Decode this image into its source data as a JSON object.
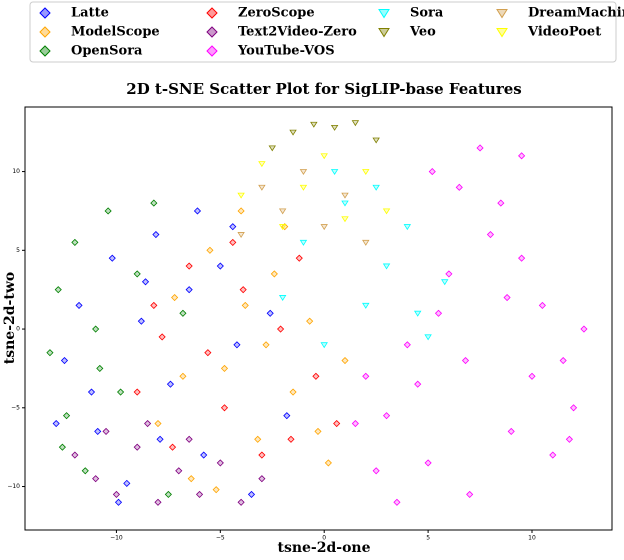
{
  "chart_data": {
    "type": "scatter",
    "title": "2D t-SNE Scatter Plot for SigLIP-base Features",
    "x_label": "tsne-2d-one",
    "y_label": "tsne-2d-two",
    "xlim": [
      -14.4,
      13.85
    ],
    "ylim": [
      -12.76,
      14.1
    ],
    "xticks": [
      {
        "value": -10,
        "label": "−10"
      },
      {
        "value": -5,
        "label": "−5"
      },
      0,
      5,
      10
    ],
    "yticks": [
      {
        "value": -10,
        "label": "−10"
      },
      {
        "value": -5,
        "label": "−5"
      },
      0,
      5,
      10
    ],
    "grid": false,
    "legend": "top",
    "series": [
      {
        "name": "Latte",
        "color": "#0000ff",
        "marker": "diamond",
        "x": [
          -12.5,
          -11.8,
          -10.9,
          -10.2,
          -9.5,
          -8.8,
          -8.1,
          -7.4,
          -6.5,
          -5.8,
          -5.0,
          -4.2,
          -3.5,
          -2.6,
          -1.8,
          -11.2,
          -9.9,
          -7.9,
          -6.1,
          -4.4,
          -12.9,
          -8.6
        ],
        "y": [
          -2.0,
          1.5,
          -6.5,
          4.5,
          -9.8,
          0.5,
          6.0,
          -3.5,
          2.5,
          -8.0,
          4.0,
          -1.0,
          -10.5,
          1.0,
          -5.5,
          -4.0,
          -11.0,
          -7.0,
          7.5,
          6.5,
          -6.0,
          3.0
        ]
      },
      {
        "name": "ModelScope",
        "color": "#ffa500",
        "marker": "diamond",
        "x": [
          -8.0,
          -7.2,
          -6.4,
          -5.5,
          -4.8,
          -4.0,
          -3.2,
          -2.4,
          -1.5,
          -0.7,
          0.2,
          1.0,
          -6.8,
          -3.8,
          -1.9,
          -0.3,
          -5.2,
          -2.8
        ],
        "y": [
          -6.0,
          2.0,
          -9.5,
          5.0,
          -2.5,
          7.5,
          -7.0,
          3.5,
          -4.0,
          0.5,
          -8.5,
          -2.0,
          -3.0,
          1.5,
          6.5,
          -6.5,
          -10.2,
          -1.0
        ]
      },
      {
        "name": "OpenSora",
        "color": "#008000",
        "marker": "diamond",
        "x": [
          -13.2,
          -12.8,
          -12.4,
          -12.0,
          -11.5,
          -11.0,
          -10.4,
          -9.8,
          -9.0,
          -8.2,
          -7.5,
          -6.8,
          -12.6,
          -10.8
        ],
        "y": [
          -1.5,
          2.5,
          -5.5,
          5.5,
          -9.0,
          0.0,
          7.5,
          -4.0,
          3.5,
          8.0,
          -10.5,
          1.0,
          -7.5,
          -2.5
        ]
      },
      {
        "name": "ZeroScope",
        "color": "#ff0000",
        "marker": "diamond",
        "x": [
          -9.0,
          -8.2,
          -7.3,
          -6.5,
          -5.6,
          -4.8,
          -3.9,
          -3.0,
          -2.1,
          -1.2,
          -0.4,
          0.6,
          -7.8,
          -4.4,
          -1.6
        ],
        "y": [
          -4.0,
          1.5,
          -7.5,
          4.0,
          -1.5,
          -5.0,
          2.5,
          -8.0,
          0.0,
          4.5,
          -3.0,
          -6.0,
          -0.5,
          5.5,
          -7.0
        ]
      },
      {
        "name": "Text2Video-Zero",
        "color": "#800080",
        "marker": "diamond",
        "x": [
          -12.0,
          -11.0,
          -10.0,
          -9.0,
          -8.0,
          -7.0,
          -6.0,
          -5.0,
          -4.0,
          -3.0,
          -10.5,
          -8.5,
          -6.5
        ],
        "y": [
          -8.0,
          -9.5,
          -10.5,
          -7.5,
          -11.0,
          -9.0,
          -10.5,
          -8.5,
          -11.0,
          -9.5,
          -6.5,
          -6.0,
          -7.0
        ]
      },
      {
        "name": "YouTube-VOS",
        "color": "#ff00ff",
        "marker": "diamond",
        "x": [
          1.5,
          2.5,
          3.5,
          4.5,
          5.5,
          6.5,
          7.5,
          8.5,
          9.5,
          10.5,
          11.5,
          12.5,
          3.0,
          5.0,
          7.0,
          9.0,
          11.0,
          4.0,
          6.0,
          8.0,
          10.0,
          12.0,
          2.0,
          6.8,
          8.8,
          5.2,
          9.5,
          11.8
        ],
        "y": [
          -6.0,
          -9.0,
          -11.0,
          -3.5,
          1.0,
          9.0,
          11.5,
          8.0,
          4.5,
          1.5,
          -2.0,
          0.0,
          -5.5,
          -8.5,
          -10.5,
          -6.5,
          -8.0,
          -1.0,
          3.5,
          6.0,
          -3.0,
          -5.0,
          -3.0,
          -2.0,
          2.0,
          10.0,
          11.0,
          -7.0
        ]
      },
      {
        "name": "Sora",
        "color": "#00ffff",
        "marker": "triangle",
        "x": [
          -2.0,
          -1.0,
          0.0,
          1.0,
          2.0,
          3.0,
          4.0,
          5.0,
          5.8,
          0.5,
          2.5,
          4.5
        ],
        "y": [
          2.0,
          5.5,
          -1.0,
          8.0,
          1.5,
          4.0,
          6.5,
          -0.5,
          3.0,
          10.0,
          9.0,
          1.0
        ]
      },
      {
        "name": "Veo",
        "color": "#808000",
        "marker": "triangle",
        "x": [
          -2.5,
          -1.5,
          -0.5,
          0.5,
          1.5,
          2.5
        ],
        "y": [
          11.5,
          12.5,
          13.0,
          12.8,
          13.1,
          12.0
        ]
      },
      {
        "name": "DreamMachine",
        "color": "#d2a050",
        "marker": "triangle",
        "x": [
          -4.0,
          -3.0,
          -2.0,
          -1.0,
          0.0,
          1.0,
          2.0
        ],
        "y": [
          6.0,
          9.0,
          7.5,
          10.0,
          6.5,
          8.5,
          5.5
        ]
      },
      {
        "name": "VideoPoet",
        "color": "#ffff00",
        "marker": "triangle",
        "x": [
          -4.0,
          -3.0,
          -2.0,
          -1.0,
          0.0,
          1.0,
          2.0,
          3.0
        ],
        "y": [
          8.5,
          10.5,
          6.5,
          9.0,
          11.0,
          7.0,
          10.0,
          7.5
        ]
      }
    ]
  }
}
